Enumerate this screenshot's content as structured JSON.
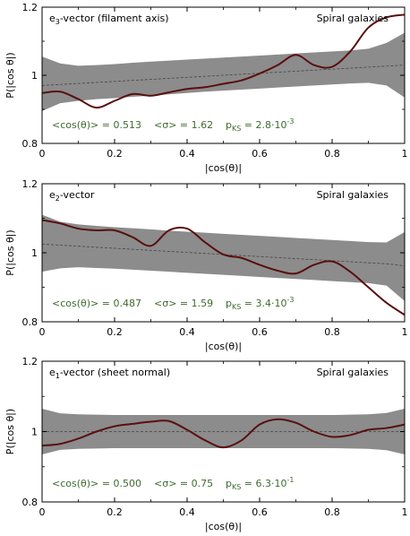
{
  "colors": {
    "band": "#8c8c8c",
    "curve": "#5a0f0f",
    "mean_line": "#444444",
    "stats_text": "#3d6b2e",
    "axis": "#000000"
  },
  "chart_data": [
    {
      "type": "line",
      "label_main": "e",
      "label_sub": "3",
      "label_rest": "-vector  (filament axis)",
      "annotation": "Spiral galaxies",
      "stat_mean": "<cos(θ)> = 0.513",
      "stat_sigma": "<σ> = 1.62",
      "stat_p_pre": "p",
      "stat_p_sub": "KS",
      "stat_p_val": " = 2.8·10",
      "stat_p_exp": "-3",
      "xlabel": "|cos(θ)|",
      "ylabel": "P(|cos θ|)",
      "xlim": [
        0,
        1
      ],
      "ylim": [
        0.8,
        1.2
      ],
      "xticks": [
        "0",
        "0.2",
        "0.4",
        "0.6",
        "0.8",
        "1"
      ],
      "yticks": [
        "0.8",
        "1",
        "1.2"
      ],
      "x": [
        0,
        0.05,
        0.1,
        0.15,
        0.2,
        0.25,
        0.3,
        0.35,
        0.4,
        0.45,
        0.5,
        0.55,
        0.6,
        0.65,
        0.7,
        0.75,
        0.8,
        0.85,
        0.9,
        0.95,
        1.0
      ],
      "curve": [
        0.948,
        0.952,
        0.93,
        0.905,
        0.925,
        0.945,
        0.94,
        0.95,
        0.96,
        0.965,
        0.975,
        0.985,
        1.005,
        1.03,
        1.06,
        1.03,
        1.025,
        1.07,
        1.14,
        1.17,
        1.178
      ],
      "mean": [
        0.97,
        0.973,
        0.976,
        0.979,
        0.982,
        0.985,
        0.988,
        0.991,
        0.994,
        0.997,
        1.0,
        1.003,
        1.006,
        1.009,
        1.012,
        1.015,
        1.018,
        1.021,
        1.024,
        1.027,
        1.03
      ],
      "band_low": [
        0.895,
        0.918,
        0.925,
        0.93,
        0.933,
        0.937,
        0.94,
        0.944,
        0.948,
        0.952,
        0.955,
        0.958,
        0.961,
        0.964,
        0.967,
        0.97,
        0.973,
        0.976,
        0.978,
        0.97,
        0.935
      ],
      "band_high": [
        1.055,
        1.035,
        1.028,
        1.03,
        1.033,
        1.037,
        1.04,
        1.043,
        1.046,
        1.049,
        1.052,
        1.055,
        1.058,
        1.061,
        1.064,
        1.067,
        1.07,
        1.073,
        1.078,
        1.095,
        1.125
      ]
    },
    {
      "type": "line",
      "label_main": "e",
      "label_sub": "2",
      "label_rest": "-vector",
      "annotation": "Spiral galaxies",
      "stat_mean": "<cos(θ)> = 0.487",
      "stat_sigma": "<σ> = 1.59",
      "stat_p_pre": "p",
      "stat_p_sub": "KS",
      "stat_p_val": " = 3.4·10",
      "stat_p_exp": "-3",
      "xlabel": "|cos(θ)|",
      "ylabel": "P(|cos θ|)",
      "xlim": [
        0,
        1
      ],
      "ylim": [
        0.8,
        1.2
      ],
      "xticks": [
        "0",
        "0.2",
        "0.4",
        "0.6",
        "0.8",
        "1"
      ],
      "yticks": [
        "0.8",
        "1",
        "1.2"
      ],
      "x": [
        0,
        0.05,
        0.1,
        0.15,
        0.2,
        0.25,
        0.3,
        0.35,
        0.4,
        0.45,
        0.5,
        0.55,
        0.6,
        0.65,
        0.7,
        0.75,
        0.8,
        0.85,
        0.9,
        0.95,
        1.0
      ],
      "curve": [
        1.095,
        1.085,
        1.07,
        1.065,
        1.065,
        1.045,
        1.02,
        1.065,
        1.07,
        1.03,
        0.995,
        0.985,
        0.965,
        0.948,
        0.94,
        0.965,
        0.975,
        0.945,
        0.9,
        0.855,
        0.82
      ],
      "mean": [
        1.025,
        1.022,
        1.019,
        1.016,
        1.013,
        1.01,
        1.007,
        1.004,
        1.001,
        0.998,
        0.995,
        0.992,
        0.989,
        0.986,
        0.983,
        0.98,
        0.977,
        0.974,
        0.971,
        0.968,
        0.962
      ],
      "band_low": [
        0.945,
        0.955,
        0.958,
        0.956,
        0.954,
        0.951,
        0.948,
        0.945,
        0.942,
        0.939,
        0.936,
        0.933,
        0.93,
        0.927,
        0.924,
        0.921,
        0.918,
        0.915,
        0.912,
        0.905,
        0.86
      ],
      "band_high": [
        1.11,
        1.09,
        1.082,
        1.078,
        1.074,
        1.071,
        1.068,
        1.064,
        1.061,
        1.058,
        1.055,
        1.052,
        1.049,
        1.046,
        1.043,
        1.04,
        1.037,
        1.034,
        1.031,
        1.03,
        1.06
      ]
    },
    {
      "type": "line",
      "label_main": "e",
      "label_sub": "1",
      "label_rest": "-vector  (sheet normal)",
      "annotation": "Spiral galaxies",
      "stat_mean": "<cos(θ)> = 0.500",
      "stat_sigma": "<σ> = 0.75",
      "stat_p_pre": "p",
      "stat_p_sub": "KS",
      "stat_p_val": " = 6.3·10",
      "stat_p_exp": "-1",
      "xlabel": "|cos(θ)|",
      "ylabel": "P(|cos θ|)",
      "xlim": [
        0,
        1
      ],
      "ylim": [
        0.8,
        1.2
      ],
      "xticks": [
        "0",
        "0.2",
        "0.4",
        "0.6",
        "0.8",
        "1"
      ],
      "yticks": [
        "0.8",
        "1",
        "1.2"
      ],
      "x": [
        0,
        0.05,
        0.1,
        0.15,
        0.2,
        0.25,
        0.3,
        0.35,
        0.4,
        0.45,
        0.5,
        0.55,
        0.6,
        0.65,
        0.7,
        0.75,
        0.8,
        0.85,
        0.9,
        0.95,
        1.0
      ],
      "curve": [
        0.96,
        0.965,
        0.98,
        1.0,
        1.015,
        1.022,
        1.028,
        1.03,
        1.005,
        0.975,
        0.955,
        0.975,
        1.02,
        1.035,
        1.025,
        1.0,
        0.985,
        0.99,
        1.005,
        1.01,
        1.02
      ],
      "mean": [
        1.0,
        1.0,
        1.0,
        1.0,
        1.0,
        1.0,
        1.0,
        1.0,
        1.0,
        1.0,
        1.0,
        1.0,
        1.0,
        1.0,
        1.0,
        1.0,
        1.0,
        1.0,
        1.0,
        1.0,
        1.0
      ],
      "band_low": [
        0.935,
        0.948,
        0.951,
        0.952,
        0.953,
        0.953,
        0.953,
        0.953,
        0.953,
        0.953,
        0.953,
        0.953,
        0.953,
        0.953,
        0.953,
        0.953,
        0.953,
        0.952,
        0.951,
        0.947,
        0.935
      ],
      "band_high": [
        1.065,
        1.052,
        1.049,
        1.048,
        1.047,
        1.047,
        1.047,
        1.047,
        1.047,
        1.047,
        1.047,
        1.047,
        1.047,
        1.047,
        1.047,
        1.047,
        1.047,
        1.048,
        1.049,
        1.053,
        1.065
      ]
    }
  ]
}
